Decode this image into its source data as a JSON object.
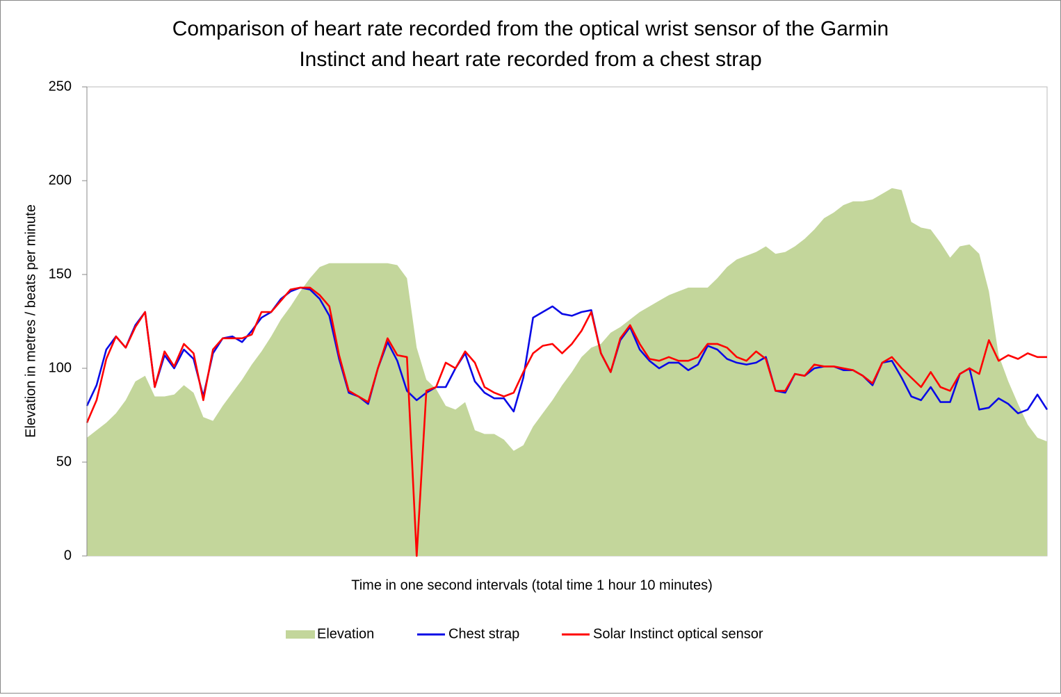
{
  "chart_data": {
    "type": "line",
    "title": "Comparison of heart rate recorded from the optical wrist sensor of the Garmin Instinct and heart rate recorded from a chest strap",
    "xlabel": "Time in one second intervals (total time 1 hour 10 minutes)",
    "ylabel": "Elevation in metres / beats per minute",
    "ylim": [
      0,
      250
    ],
    "yticks": [
      0,
      50,
      100,
      150,
      200,
      250
    ],
    "grid": false,
    "legend": "bottom",
    "categories": [
      null,
      null,
      null,
      null,
      null,
      null,
      null,
      null,
      null,
      null,
      null,
      null,
      null,
      null,
      null,
      null,
      null,
      null,
      null,
      null,
      null,
      null,
      null,
      null,
      null,
      null,
      null,
      null,
      null,
      null,
      null,
      null,
      null,
      null,
      null,
      null,
      null,
      null,
      null,
      null,
      null,
      null,
      null,
      null,
      null,
      null,
      null,
      null,
      null,
      null,
      null,
      null,
      null,
      null,
      null,
      null,
      null,
      null,
      null,
      null,
      null,
      null,
      null,
      null,
      null,
      null,
      null,
      null,
      null,
      null,
      null,
      null,
      null,
      null,
      null,
      null,
      null,
      null,
      null,
      null,
      null,
      null,
      null,
      null,
      null,
      null,
      null,
      null,
      null,
      null,
      null,
      null,
      null,
      null,
      null,
      null,
      null,
      null,
      null,
      null
    ],
    "series": [
      {
        "name": "Elevation",
        "type": "area",
        "color": "#c3d69b",
        "values": [
          63,
          67,
          71,
          76,
          83,
          93,
          96,
          85,
          85,
          86,
          91,
          87,
          74,
          72,
          80,
          87,
          94,
          102,
          109,
          117,
          126,
          133,
          141,
          148,
          154,
          156,
          156,
          156,
          156,
          156,
          156,
          156,
          155,
          148,
          111,
          94,
          89,
          80,
          78,
          82,
          67,
          65,
          65,
          62,
          56,
          59,
          69,
          76,
          83,
          91,
          98,
          106,
          111,
          113,
          119,
          122,
          126,
          130,
          133,
          136,
          139,
          141,
          143,
          143,
          143,
          148,
          154,
          158,
          160,
          162,
          165,
          161,
          162,
          165,
          169,
          174,
          180,
          183,
          187,
          189,
          189,
          190,
          193,
          196,
          195,
          178,
          175,
          174,
          167,
          159,
          165,
          166,
          161,
          141,
          107,
          93,
          81,
          70,
          63,
          61
        ]
      },
      {
        "name": "Chest strap",
        "type": "line",
        "color": "#0a0ae6",
        "values": [
          80,
          91,
          110,
          117,
          111,
          123,
          130,
          90,
          107,
          100,
          110,
          105,
          85,
          108,
          116,
          117,
          114,
          120,
          127,
          130,
          137,
          141,
          143,
          142,
          137,
          128,
          105,
          87,
          85,
          81,
          100,
          114,
          104,
          88,
          83,
          87,
          90,
          90,
          100,
          108,
          93,
          87,
          84,
          84,
          77,
          95,
          127,
          130,
          133,
          129,
          128,
          130,
          131,
          108,
          98,
          115,
          122,
          110,
          104,
          100,
          103,
          103,
          99,
          102,
          112,
          110,
          105,
          103,
          102,
          103,
          106,
          88,
          87,
          97,
          96,
          100,
          101,
          101,
          99,
          99,
          96,
          91,
          103,
          104,
          95,
          85,
          83,
          90,
          82,
          82,
          97,
          100,
          78,
          79,
          84,
          81,
          76,
          78,
          86,
          78
        ]
      },
      {
        "name": "Solar Instinct optical sensor",
        "type": "line",
        "color": "#ff0000",
        "values": [
          71,
          83,
          105,
          117,
          111,
          122,
          130,
          90,
          109,
          101,
          113,
          108,
          83,
          110,
          116,
          116,
          116,
          118,
          130,
          130,
          136,
          142,
          143,
          143,
          139,
          133,
          107,
          88,
          85,
          82,
          100,
          116,
          107,
          106,
          0,
          88,
          90,
          103,
          100,
          109,
          103,
          90,
          87,
          85,
          87,
          98,
          108,
          112,
          113,
          108,
          113,
          120,
          130,
          108,
          98,
          116,
          123,
          113,
          105,
          104,
          106,
          104,
          104,
          106,
          113,
          113,
          111,
          106,
          104,
          109,
          105,
          88,
          88,
          97,
          96,
          102,
          101,
          101,
          100,
          99,
          96,
          92,
          103,
          106,
          100,
          95,
          90,
          98,
          90,
          88,
          97,
          100,
          97,
          115,
          104,
          107,
          105,
          108,
          106,
          106
        ]
      }
    ]
  }
}
